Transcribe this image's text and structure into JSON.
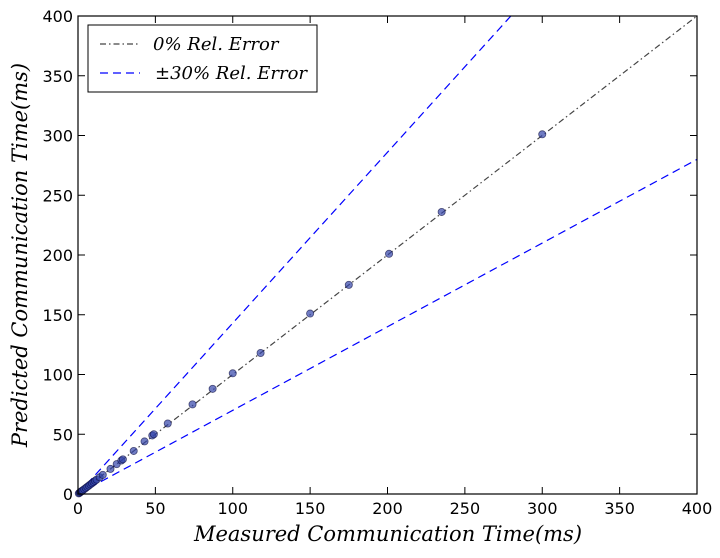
{
  "chart_data": {
    "type": "scatter",
    "title": "",
    "xlabel": "Measured Communication Time(ms)",
    "ylabel": "Predicted Communication Time(ms)",
    "xlim": [
      0,
      400
    ],
    "ylim": [
      0,
      400
    ],
    "xticks": [
      "0",
      "50",
      "100",
      "150",
      "200",
      "250",
      "300",
      "350",
      "400"
    ],
    "yticks": [
      "0",
      "50",
      "100",
      "150",
      "200",
      "250",
      "300",
      "350",
      "400"
    ],
    "grid": false,
    "legend_position": "top-left",
    "legend": [
      {
        "label": "0% Rel. Error",
        "style": "dash-dot",
        "color": "#444444"
      },
      {
        "label": "±30% Rel. Error",
        "style": "dashed",
        "color": "#0000ff"
      }
    ],
    "reference_lines": [
      {
        "name": "0% Rel. Error",
        "slope": 1.0
      },
      {
        "name": "+30% Rel. Error",
        "slope": 1.43
      },
      {
        "name": "-30% Rel. Error",
        "slope": 0.7
      }
    ],
    "point_color": "#3344aa",
    "series": [
      {
        "x": [
          0.5,
          1,
          1.5,
          2,
          2.5,
          3,
          4,
          5,
          6,
          7,
          8,
          9,
          10,
          11,
          12,
          14,
          16,
          21,
          25,
          28,
          29,
          36,
          43,
          48,
          49,
          58,
          74,
          87,
          100,
          118,
          150,
          175,
          201,
          235,
          300
        ],
        "y": [
          0.5,
          1,
          1.5,
          2,
          2.5,
          3,
          4,
          5,
          6,
          7,
          8,
          9,
          10,
          11,
          12,
          14,
          16,
          21,
          25,
          28,
          29,
          36,
          44,
          49,
          50,
          59,
          75,
          88,
          101,
          118,
          151,
          175,
          201,
          236,
          301
        ]
      }
    ]
  }
}
